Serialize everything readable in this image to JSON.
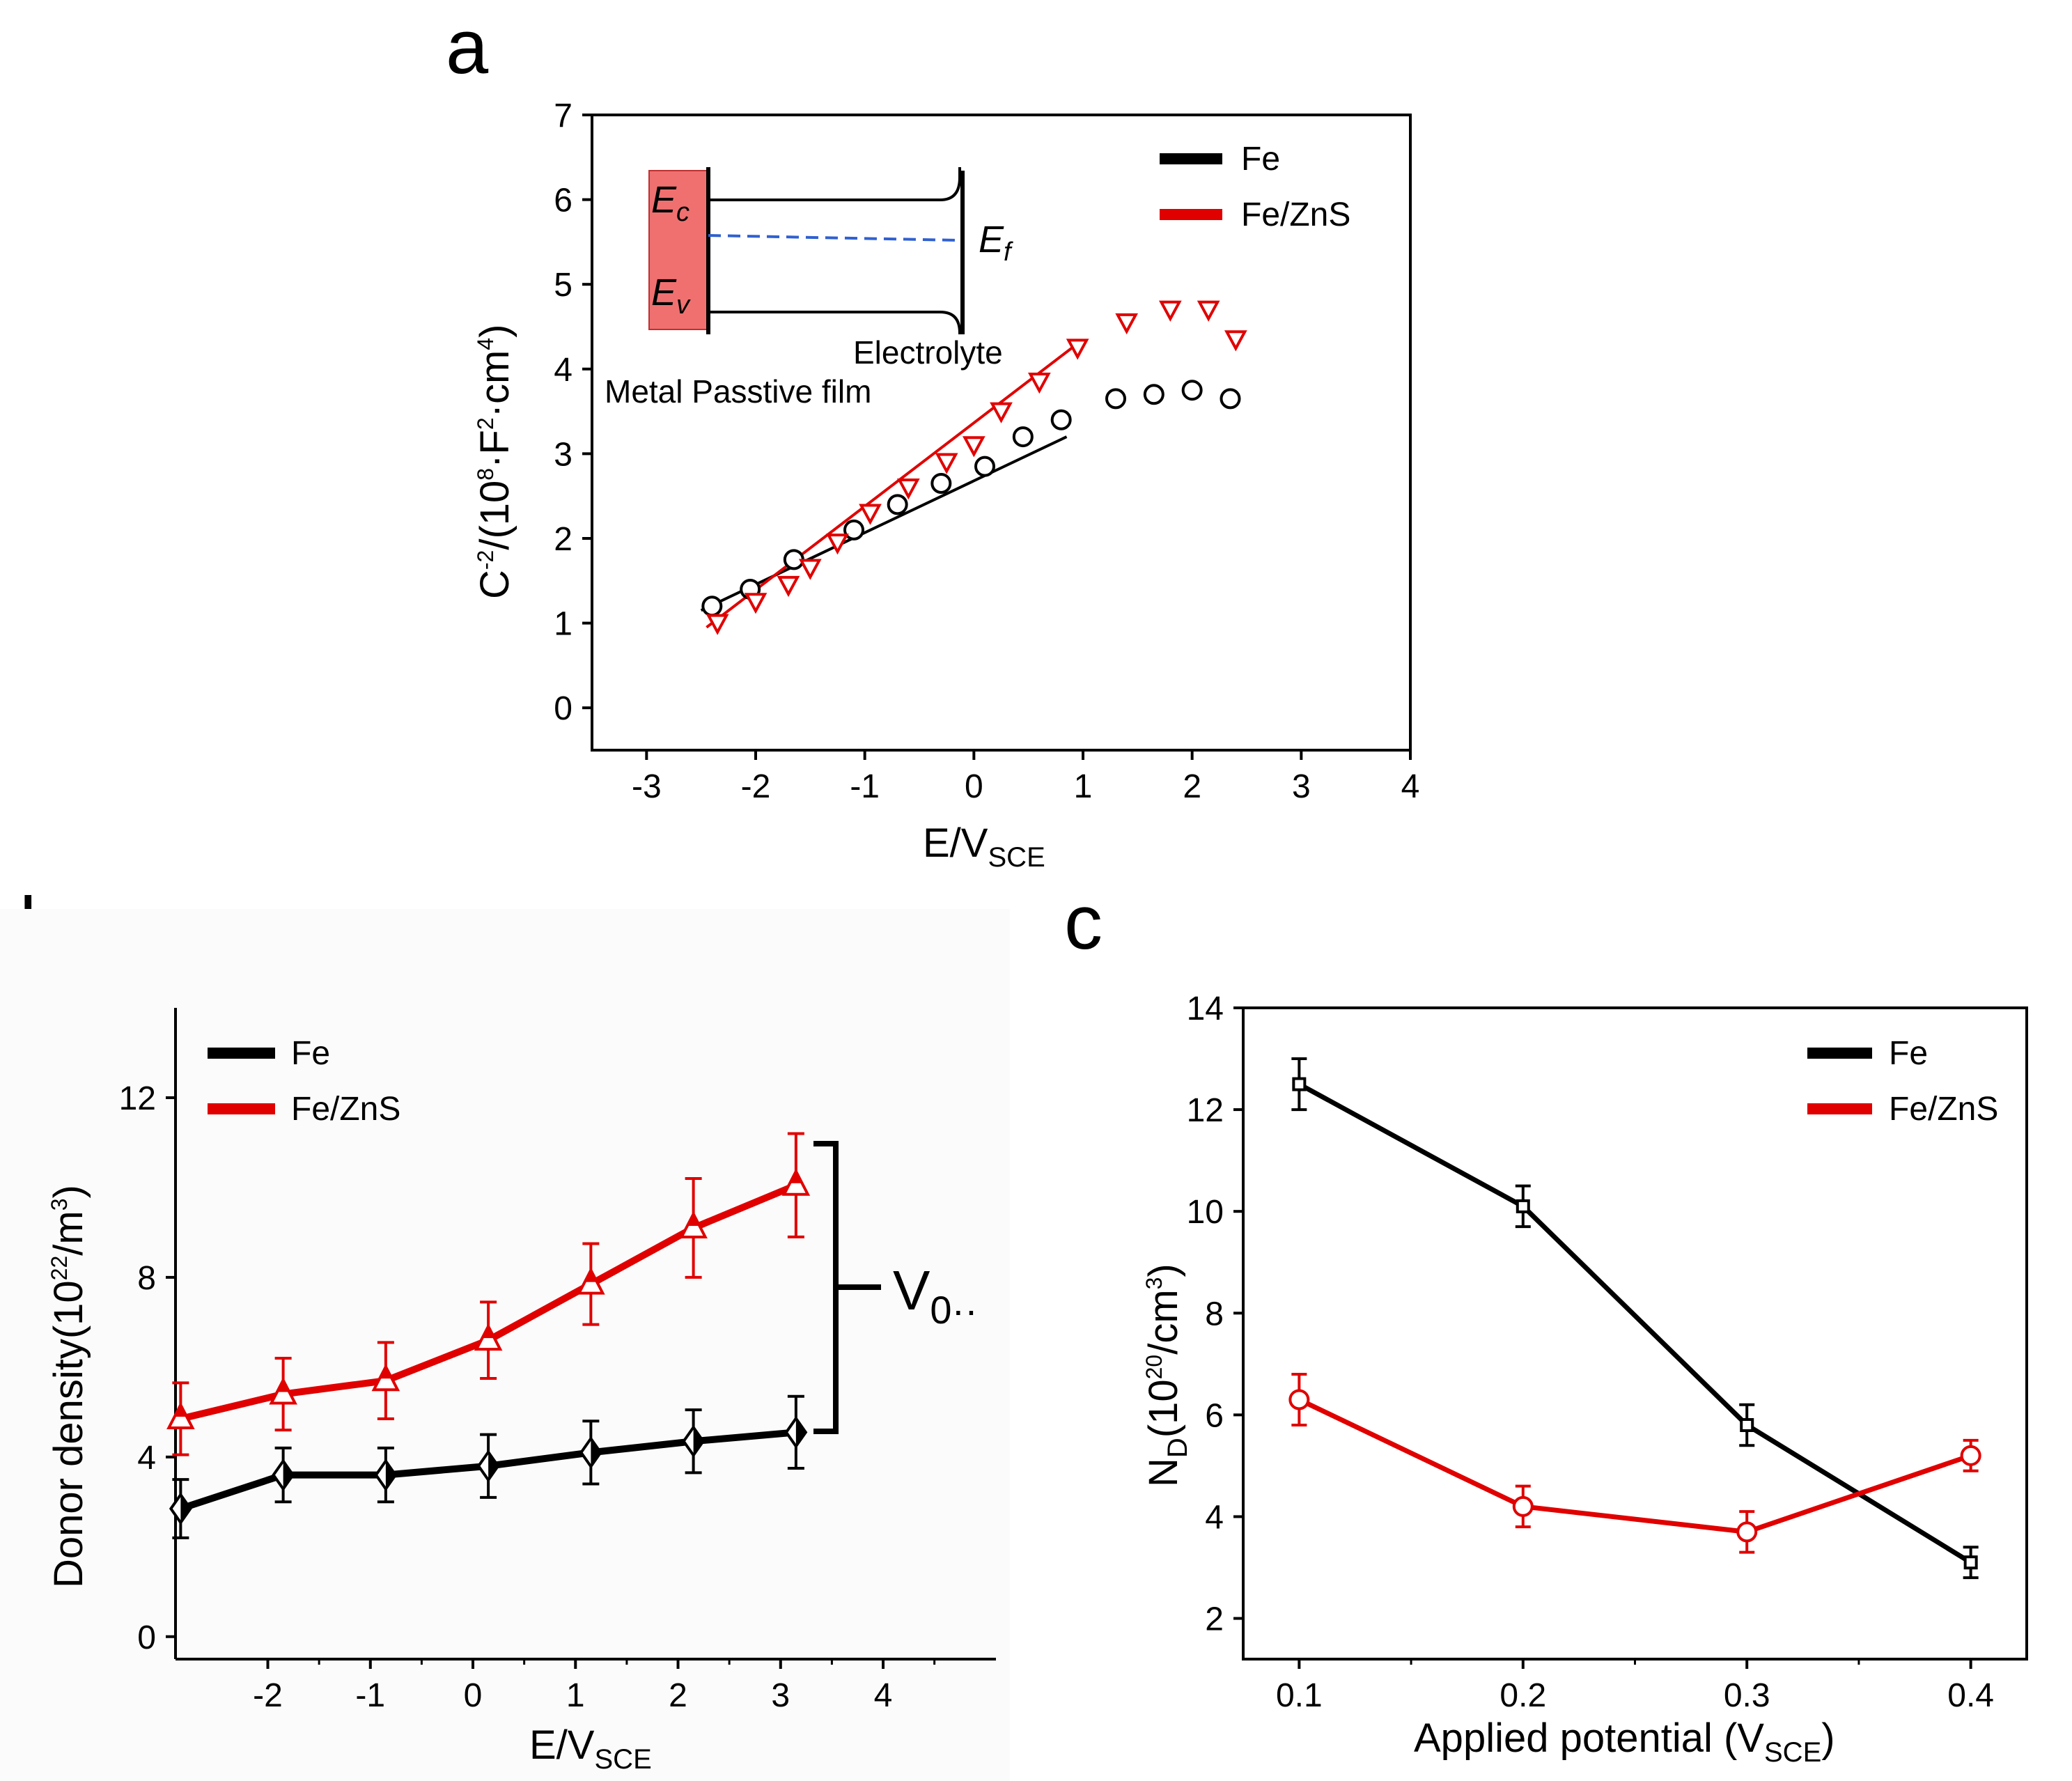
{
  "chart_data": [
    {
      "panel": "a",
      "type": "scatter",
      "xlabel": {
        "main": "E/V",
        "sub": "SCE"
      },
      "ylabel": {
        "p1": "C",
        "sup1": "-2",
        "p2": "/(10",
        "sup2": "8",
        "p3": "·F",
        "sup3": "2",
        "p4": "·cm",
        "sup4": "4",
        "p5": ")"
      },
      "xlim": [
        -3.5,
        4
      ],
      "ylim": [
        -0.5,
        7
      ],
      "xticks": [
        "-3",
        "-2",
        "-1",
        "0",
        "1",
        "2",
        "3",
        "4"
      ],
      "yticks": [
        "0",
        "1",
        "2",
        "3",
        "4",
        "5",
        "6",
        "7"
      ],
      "legend": [
        {
          "label": "Fe",
          "color": "#000000"
        },
        {
          "label": "Fe/ZnS",
          "color": "#e00000"
        }
      ],
      "series": [
        {
          "name": "Fe",
          "color": "#000000",
          "marker": "circle",
          "x": [
            -2.4,
            -2.05,
            -1.65,
            -1.1,
            -0.7,
            -0.3,
            0.1,
            0.45,
            0.8,
            1.3,
            1.65,
            2.0,
            2.35
          ],
          "y": [
            1.2,
            1.4,
            1.75,
            2.1,
            2.4,
            2.65,
            2.85,
            3.2,
            3.4,
            3.65,
            3.7,
            3.75,
            3.65
          ],
          "fit": {
            "x": [
              -2.5,
              0.85
            ],
            "y": [
              1.15,
              3.2
            ]
          }
        },
        {
          "name": "Fe/ZnS",
          "color": "#e00000",
          "marker": "triangle-down",
          "x": [
            -2.35,
            -2.0,
            -1.7,
            -1.5,
            -1.25,
            -0.95,
            -0.6,
            -0.25,
            0.0,
            0.25,
            0.6,
            0.95,
            1.4,
            1.8,
            2.15,
            2.4
          ],
          "y": [
            1.0,
            1.25,
            1.45,
            1.65,
            1.95,
            2.3,
            2.6,
            2.9,
            3.1,
            3.5,
            3.85,
            4.25,
            4.55,
            4.7,
            4.7,
            4.35
          ],
          "fit": {
            "x": [
              -2.45,
              0.95
            ],
            "y": [
              0.95,
              4.3
            ]
          }
        }
      ],
      "inset": {
        "ec": "E",
        "ec_sub": "c",
        "ev": "E",
        "ev_sub": "v",
        "ef": "E",
        "ef_sub": "f",
        "electrolyte": "Electrolyte",
        "metal_film": "Metal Passtive film"
      }
    },
    {
      "panel": "b",
      "type": "line",
      "xlabel": {
        "main": "E/V",
        "sub": "SCE"
      },
      "ylabel": {
        "p1": "Donor density(10",
        "sup1": "22",
        "p2": "/m",
        "sup2": "3",
        "p3": ")"
      },
      "xlim": [
        -2.9,
        5.1
      ],
      "ylim": [
        -0.5,
        14
      ],
      "xticks": [
        "-2",
        "-1",
        "0",
        "1",
        "2",
        "3",
        "4"
      ],
      "yticks": [
        "0",
        "4",
        "8",
        "12"
      ],
      "legend": [
        {
          "label": "Fe",
          "color": "#000000"
        },
        {
          "label": "Fe/ZnS",
          "color": "#e00000"
        }
      ],
      "annotation": {
        "main": "V",
        "sub": "0··"
      },
      "series": [
        {
          "name": "Fe",
          "color": "#000000",
          "marker": "half-filled-diamond",
          "x": [
            -2.85,
            -1.85,
            -0.85,
            0.15,
            1.15,
            2.15,
            3.15
          ],
          "y": [
            2.85,
            3.6,
            3.6,
            3.8,
            4.1,
            4.35,
            4.55
          ],
          "err": [
            0.65,
            0.6,
            0.6,
            0.7,
            0.7,
            0.7,
            0.8
          ]
        },
        {
          "name": "Fe/ZnS",
          "color": "#e00000",
          "marker": "half-filled-triangle",
          "x": [
            -2.85,
            -1.85,
            -0.85,
            0.15,
            1.15,
            2.15,
            3.15
          ],
          "y": [
            4.85,
            5.4,
            5.7,
            6.6,
            7.85,
            9.1,
            10.05
          ],
          "err": [
            0.8,
            0.8,
            0.85,
            0.85,
            0.9,
            1.1,
            1.15
          ]
        }
      ]
    },
    {
      "panel": "c",
      "type": "line",
      "xlabel": {
        "p1": "Applied potential (V",
        "sub": "SCE",
        "p2": ")"
      },
      "ylabel": {
        "p1": "N",
        "sub": "D",
        "p2": "(10",
        "sup": "20",
        "p3": "/cm",
        "sup2": "3",
        "p4": ")"
      },
      "xlim": [
        0.075,
        0.425
      ],
      "ylim": [
        1.2,
        14
      ],
      "xticks": [
        "0.1",
        "0.2",
        "0.3",
        "0.4"
      ],
      "yticks": [
        "2",
        "4",
        "6",
        "8",
        "10",
        "12",
        "14"
      ],
      "legend": [
        {
          "label": "Fe",
          "color": "#000000"
        },
        {
          "label": "Fe/ZnS",
          "color": "#e00000"
        }
      ],
      "series": [
        {
          "name": "Fe",
          "color": "#000000",
          "marker": "square",
          "x": [
            0.1,
            0.2,
            0.3,
            0.4
          ],
          "y": [
            12.5,
            10.1,
            5.8,
            3.1
          ],
          "err": [
            0.5,
            0.4,
            0.4,
            0.3
          ]
        },
        {
          "name": "Fe/ZnS",
          "color": "#e00000",
          "marker": "circle",
          "x": [
            0.1,
            0.2,
            0.3,
            0.4
          ],
          "y": [
            6.3,
            4.2,
            3.7,
            5.2
          ],
          "err": [
            0.5,
            0.4,
            0.4,
            0.3
          ]
        }
      ]
    }
  ]
}
